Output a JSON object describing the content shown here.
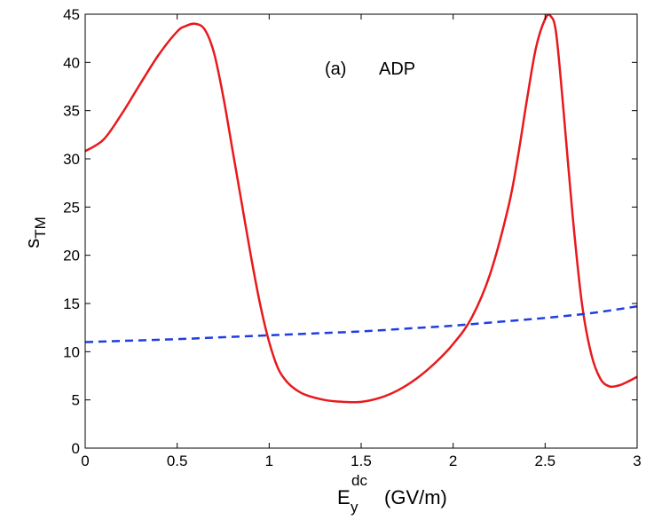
{
  "chart_data": {
    "type": "line",
    "title": "",
    "annotation": {
      "panel": "(a)",
      "text": "ADP"
    },
    "xlabel": {
      "main": "E",
      "sub": "y",
      "sup": "dc",
      "unit": "(GV/m)"
    },
    "ylabel": {
      "main": "s",
      "sub": "TM"
    },
    "xlim": [
      0,
      3
    ],
    "ylim": [
      0,
      45
    ],
    "xticks": [
      0,
      0.5,
      1,
      1.5,
      2,
      2.5,
      3
    ],
    "xtick_labels": [
      "0",
      "0.5",
      "1",
      "1.5",
      "2",
      "2.5",
      "3"
    ],
    "yticks": [
      0,
      5,
      10,
      15,
      20,
      25,
      30,
      35,
      40,
      45
    ],
    "ytick_labels": [
      "0",
      "5",
      "10",
      "15",
      "20",
      "25",
      "30",
      "35",
      "40",
      "45"
    ],
    "grid": false,
    "series": [
      {
        "name": "solid",
        "color": "#e8191c",
        "style": "solid",
        "x": [
          0,
          0.1,
          0.2,
          0.3,
          0.4,
          0.5,
          0.55,
          0.6,
          0.65,
          0.7,
          0.75,
          0.8,
          0.85,
          0.9,
          0.95,
          1.0,
          1.05,
          1.1,
          1.15,
          1.2,
          1.3,
          1.4,
          1.5,
          1.6,
          1.7,
          1.8,
          1.9,
          2.0,
          2.1,
          2.2,
          2.3,
          2.35,
          2.4,
          2.45,
          2.5,
          2.53,
          2.56,
          2.6,
          2.65,
          2.7,
          2.75,
          2.8,
          2.85,
          2.9,
          2.95,
          3.0
        ],
        "y": [
          30.8,
          32.0,
          34.7,
          37.8,
          40.8,
          43.2,
          43.8,
          44.0,
          43.4,
          41.0,
          36.5,
          31.0,
          25.5,
          20.0,
          15.0,
          11.0,
          8.2,
          6.8,
          6.0,
          5.5,
          5.0,
          4.8,
          4.8,
          5.2,
          6.0,
          7.2,
          8.8,
          10.8,
          13.5,
          18.0,
          25.0,
          30.0,
          36.0,
          41.5,
          44.5,
          44.8,
          43.0,
          35.0,
          24.0,
          15.0,
          9.8,
          7.2,
          6.4,
          6.5,
          6.9,
          7.4
        ]
      },
      {
        "name": "dashed",
        "color": "#1f3ee0",
        "style": "dashed",
        "x": [
          0,
          0.25,
          0.5,
          0.75,
          1.0,
          1.25,
          1.5,
          1.75,
          2.0,
          2.25,
          2.5,
          2.75,
          3.0
        ],
        "y": [
          11.0,
          11.15,
          11.3,
          11.5,
          11.7,
          11.9,
          12.1,
          12.4,
          12.7,
          13.1,
          13.5,
          14.0,
          14.7
        ]
      }
    ]
  }
}
